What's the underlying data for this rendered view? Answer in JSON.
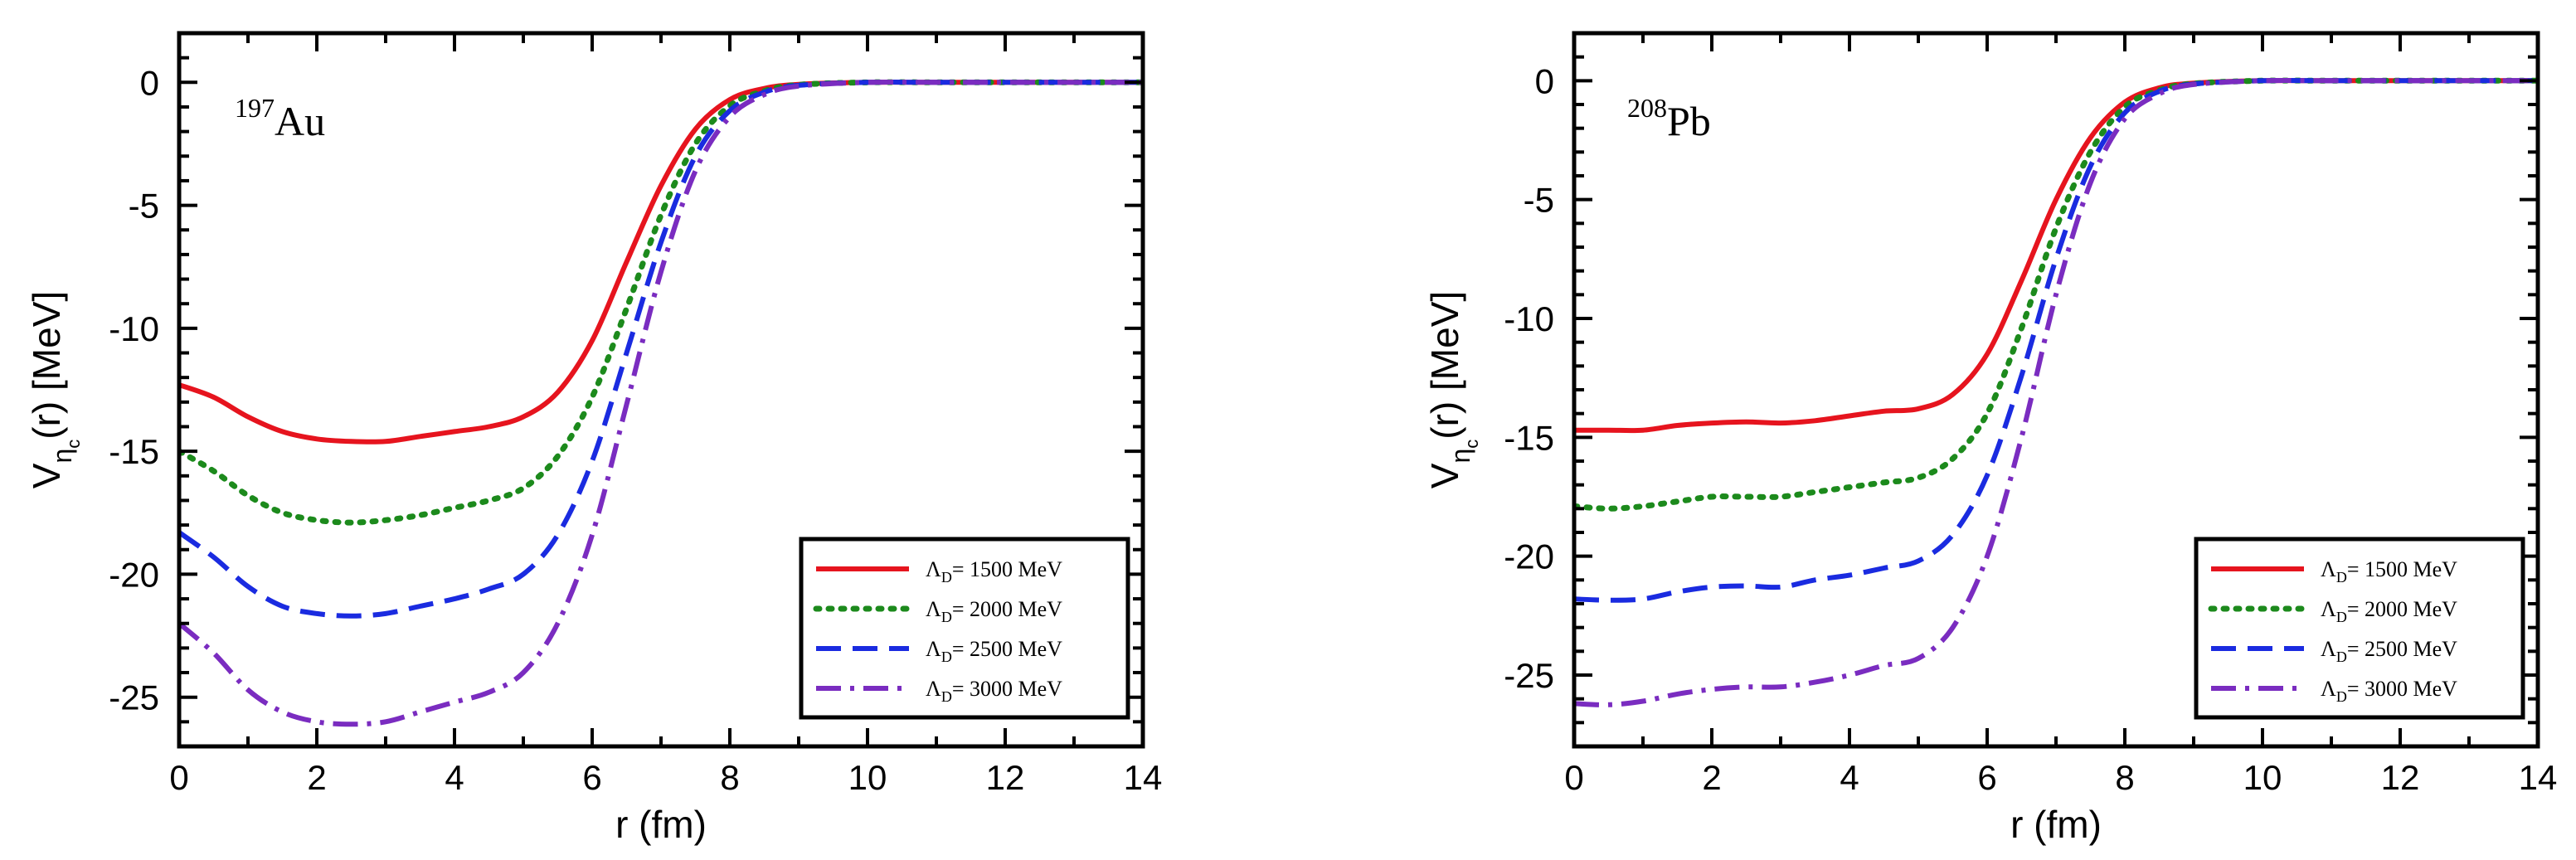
{
  "figure": {
    "background": "#ffffff"
  },
  "chart_data": [
    {
      "type": "line",
      "nucleus": {
        "mass": "197",
        "element": "Au"
      },
      "xlabel": "r (fm)",
      "ylabel": {
        "main": "V",
        "sub": "η",
        "subsub": "c",
        "tail": "(r)  [MeV]"
      },
      "xlim": [
        0,
        14
      ],
      "ylim": [
        -27,
        2
      ],
      "xticks": [
        0,
        2,
        4,
        6,
        8,
        10,
        12,
        14
      ],
      "yticks": [
        0,
        -5,
        -10,
        -15,
        -20,
        -25
      ],
      "legend_position": "bottom-right",
      "series": [
        {
          "lambda": "1500",
          "color": "#e6141e",
          "style": "solid",
          "x": [
            0,
            0.5,
            1,
            1.5,
            2,
            2.5,
            3,
            3.5,
            4,
            4.5,
            5,
            5.5,
            6,
            6.5,
            7,
            7.5,
            8,
            8.5,
            9,
            10,
            11,
            12,
            13,
            14
          ],
          "y": [
            -12.3,
            -12.8,
            -13.6,
            -14.2,
            -14.5,
            -14.6,
            -14.6,
            -14.4,
            -14.2,
            -14.0,
            -13.6,
            -12.6,
            -10.5,
            -7.3,
            -4.2,
            -1.9,
            -0.7,
            -0.25,
            -0.08,
            0,
            0,
            0,
            0,
            0
          ]
        },
        {
          "lambda": "2000",
          "color": "#1c8a1c",
          "style": "dotted",
          "x": [
            0,
            0.5,
            1,
            1.5,
            2,
            2.5,
            3,
            3.5,
            4,
            4.5,
            5,
            5.5,
            6,
            6.5,
            7,
            7.5,
            8,
            8.5,
            9,
            10,
            11,
            12,
            13,
            14
          ],
          "y": [
            -15.0,
            -15.8,
            -16.8,
            -17.5,
            -17.8,
            -17.9,
            -17.8,
            -17.6,
            -17.3,
            -17.0,
            -16.5,
            -15.2,
            -12.8,
            -9.2,
            -5.4,
            -2.5,
            -0.95,
            -0.35,
            -0.1,
            0,
            0,
            0,
            0,
            0
          ]
        },
        {
          "lambda": "2500",
          "color": "#1a2be0",
          "style": "dashed",
          "x": [
            0,
            0.5,
            1,
            1.5,
            2,
            2.5,
            3,
            3.5,
            4,
            4.5,
            5,
            5.5,
            6,
            6.5,
            7,
            7.5,
            8,
            8.5,
            9,
            10,
            11,
            12,
            13,
            14
          ],
          "y": [
            -18.3,
            -19.3,
            -20.5,
            -21.3,
            -21.6,
            -21.7,
            -21.6,
            -21.3,
            -21.0,
            -20.6,
            -20.0,
            -18.4,
            -15.4,
            -11.0,
            -6.5,
            -3.0,
            -1.15,
            -0.4,
            -0.12,
            0,
            0,
            0,
            0,
            0
          ]
        },
        {
          "lambda": "3000",
          "color": "#7a2cc0",
          "style": "dashdot",
          "x": [
            0,
            0.5,
            1,
            1.5,
            2,
            2.5,
            3,
            3.5,
            4,
            4.5,
            5,
            5.5,
            6,
            6.5,
            7,
            7.5,
            8,
            8.5,
            9,
            10,
            11,
            12,
            13,
            14
          ],
          "y": [
            -22.0,
            -23.2,
            -24.7,
            -25.6,
            -26.0,
            -26.1,
            -26.0,
            -25.6,
            -25.2,
            -24.8,
            -24.0,
            -22.0,
            -18.4,
            -13.1,
            -7.7,
            -3.6,
            -1.4,
            -0.5,
            -0.15,
            0,
            0,
            0,
            0,
            0
          ]
        }
      ]
    },
    {
      "type": "line",
      "nucleus": {
        "mass": "208",
        "element": "Pb"
      },
      "xlabel": "r (fm)",
      "ylabel": {
        "main": "V",
        "sub": "η",
        "subsub": "c",
        "tail": "(r)  [MeV]"
      },
      "xlim": [
        0,
        14
      ],
      "ylim": [
        -28,
        2
      ],
      "xticks": [
        0,
        2,
        4,
        6,
        8,
        10,
        12,
        14
      ],
      "yticks": [
        0,
        -5,
        -10,
        -15,
        -20,
        -25
      ],
      "legend_position": "bottom-right",
      "series": [
        {
          "lambda": "1500",
          "color": "#e6141e",
          "style": "solid",
          "x": [
            0,
            0.5,
            1,
            1.5,
            2,
            2.5,
            3,
            3.5,
            4,
            4.5,
            5,
            5.5,
            6,
            6.5,
            7,
            7.5,
            8,
            8.5,
            9,
            10,
            11,
            12,
            13,
            14
          ],
          "y": [
            -14.7,
            -14.7,
            -14.7,
            -14.5,
            -14.4,
            -14.35,
            -14.4,
            -14.3,
            -14.1,
            -13.9,
            -13.8,
            -13.2,
            -11.5,
            -8.4,
            -5.0,
            -2.4,
            -0.9,
            -0.3,
            -0.1,
            0,
            0,
            0,
            0,
            0
          ]
        },
        {
          "lambda": "2000",
          "color": "#1c8a1c",
          "style": "dotted",
          "x": [
            0,
            0.5,
            1,
            1.5,
            2,
            2.5,
            3,
            3.5,
            4,
            4.5,
            5,
            5.5,
            6,
            6.5,
            7,
            7.5,
            8,
            8.5,
            9,
            10,
            11,
            12,
            13,
            14
          ],
          "y": [
            -17.9,
            -18.0,
            -17.9,
            -17.7,
            -17.5,
            -17.5,
            -17.5,
            -17.3,
            -17.1,
            -16.9,
            -16.7,
            -15.9,
            -14.0,
            -10.4,
            -6.2,
            -3.0,
            -1.1,
            -0.4,
            -0.12,
            0,
            0,
            0,
            0,
            0
          ]
        },
        {
          "lambda": "2500",
          "color": "#1a2be0",
          "style": "dashed",
          "x": [
            0,
            0.5,
            1,
            1.5,
            2,
            2.5,
            3,
            3.5,
            4,
            4.5,
            5,
            5.5,
            6,
            6.5,
            7,
            7.5,
            8,
            8.5,
            9,
            10,
            11,
            12,
            13,
            14
          ],
          "y": [
            -21.8,
            -21.85,
            -21.8,
            -21.5,
            -21.3,
            -21.25,
            -21.3,
            -21.0,
            -20.8,
            -20.5,
            -20.2,
            -19.1,
            -16.6,
            -12.4,
            -7.5,
            -3.6,
            -1.35,
            -0.45,
            -0.14,
            0,
            0,
            0,
            0,
            0
          ]
        },
        {
          "lambda": "3000",
          "color": "#7a2cc0",
          "style": "dashdot",
          "x": [
            0,
            0.5,
            1,
            1.5,
            2,
            2.5,
            3,
            3.5,
            4,
            4.5,
            5,
            5.5,
            6,
            6.5,
            7,
            7.5,
            8,
            8.5,
            9,
            10,
            11,
            12,
            13,
            14
          ],
          "y": [
            -26.2,
            -26.25,
            -26.1,
            -25.8,
            -25.6,
            -25.5,
            -25.5,
            -25.3,
            -25.0,
            -24.6,
            -24.3,
            -23.0,
            -20.0,
            -15.0,
            -9.0,
            -4.3,
            -1.6,
            -0.55,
            -0.16,
            0,
            0,
            0,
            0,
            0
          ]
        }
      ]
    }
  ],
  "legend_text": {
    "symbol": "Λ",
    "sub": "D",
    "sep": "= ",
    "unit": " MeV"
  }
}
